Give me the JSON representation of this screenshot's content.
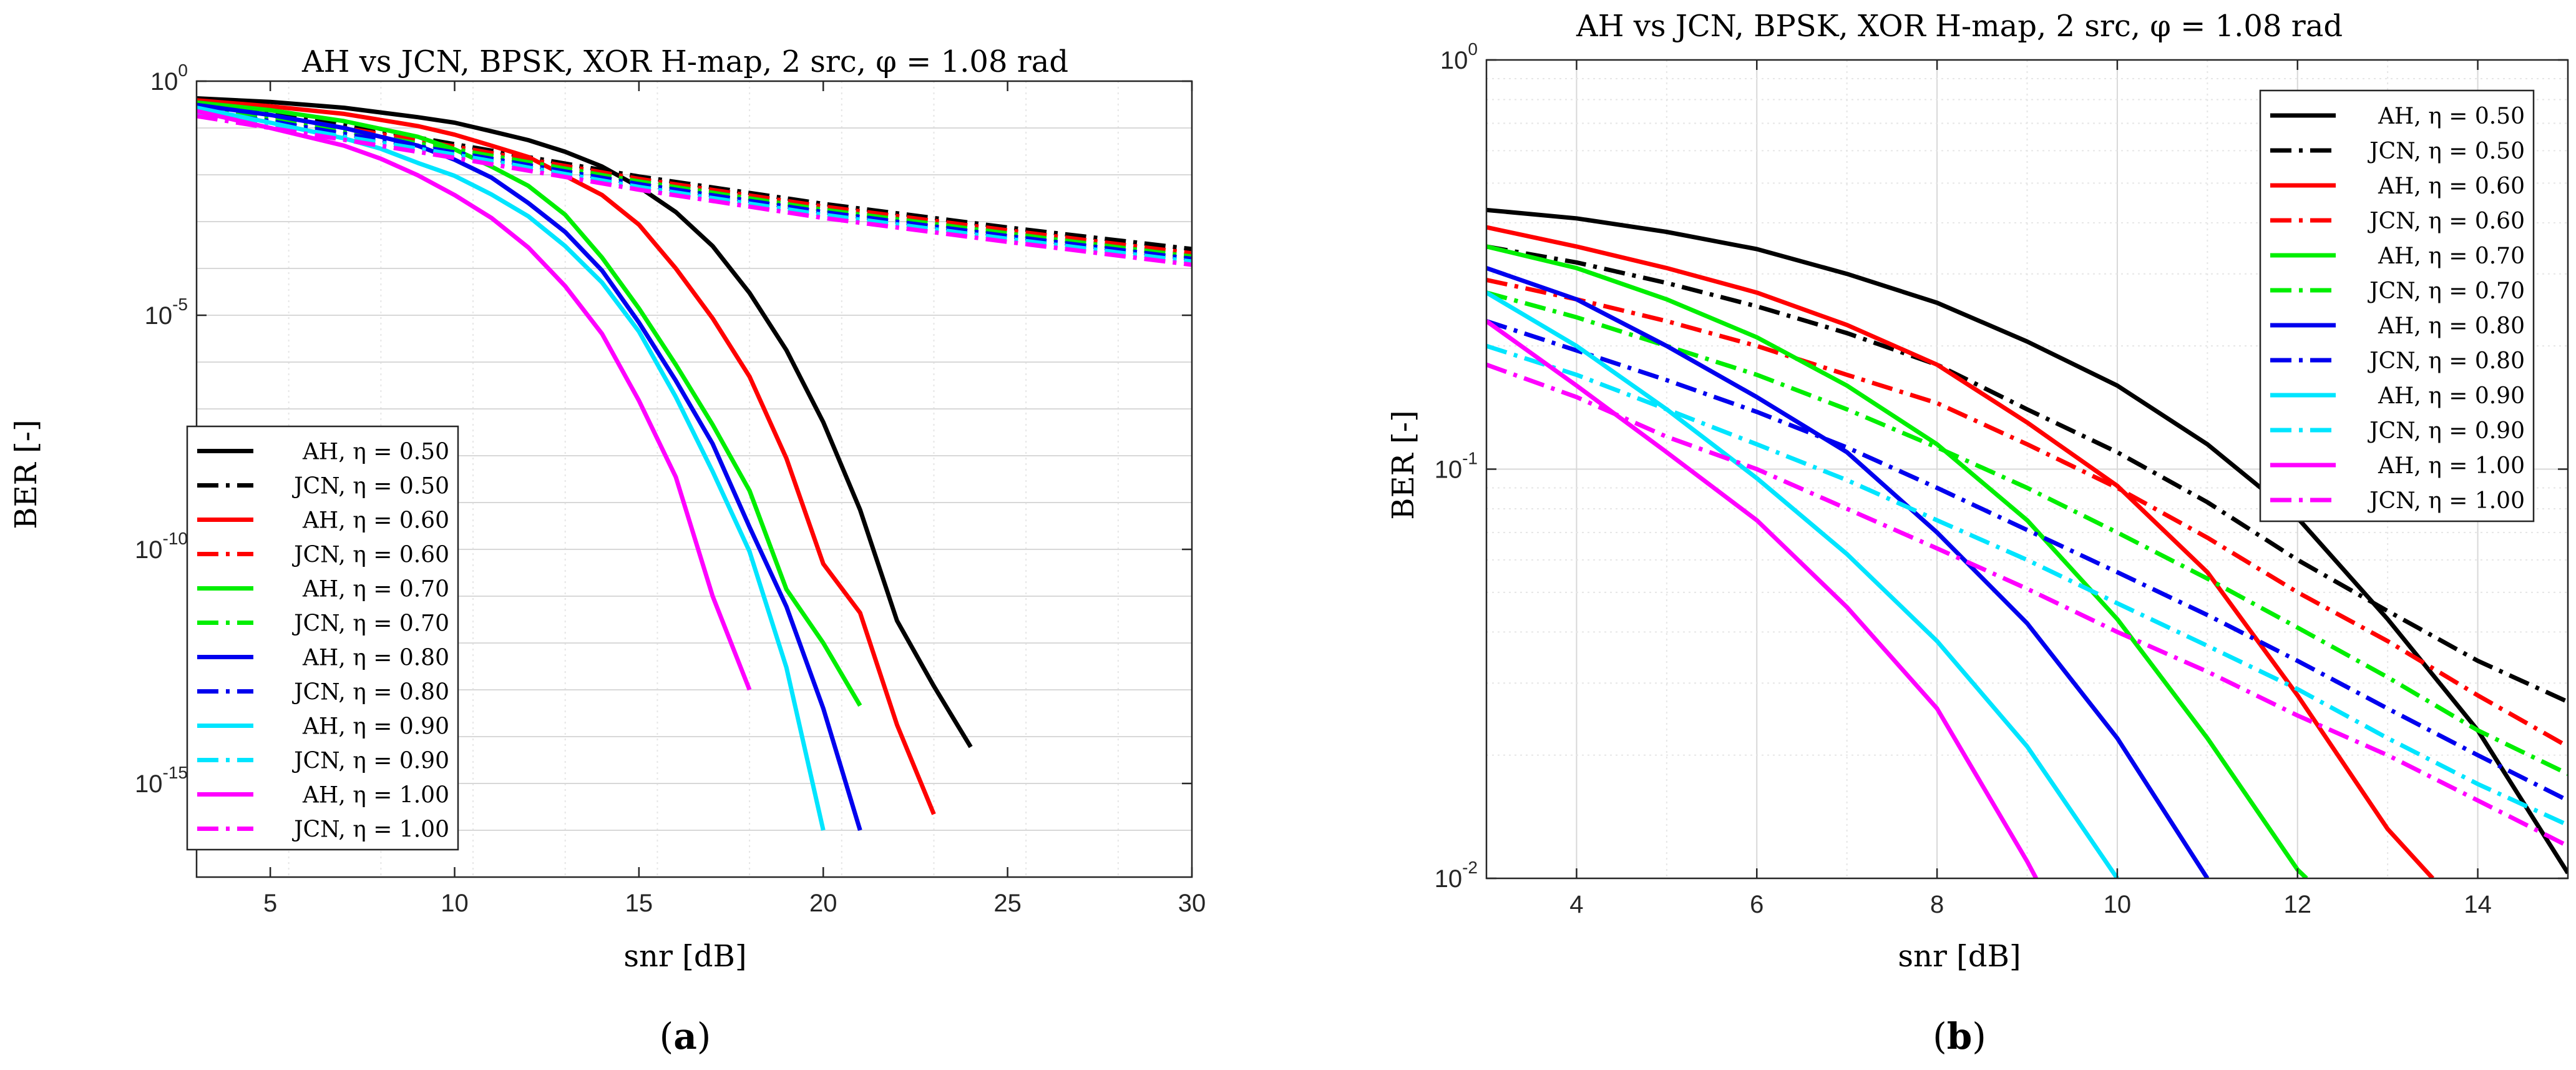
{
  "chart_data": [
    {
      "type": "line",
      "panel": "a",
      "caption_letter": "a",
      "title": "AH vs JCN, BPSK, XOR H-map, 2 src, φ = 1.08 rad",
      "xlabel": "snr [dB]",
      "ylabel": "BER [-]",
      "xscale": "linear",
      "yscale": "log",
      "xlim": [
        3,
        30
      ],
      "ylim": [
        1e-17,
        1
      ],
      "xticks": [
        5,
        10,
        15,
        20,
        25,
        30
      ],
      "xtick_labels": [
        "5",
        "10",
        "15",
        "20",
        "25",
        "30"
      ],
      "yticks": [
        1,
        1e-05,
        1e-10,
        1e-15
      ],
      "ytick_labels": [
        {
          "base": "10",
          "exp": "0"
        },
        {
          "base": "10",
          "exp": "-5"
        },
        {
          "base": "10",
          "exp": "-10"
        },
        {
          "base": "10",
          "exp": "-15"
        }
      ],
      "grid": true,
      "legend_position": "lower-left",
      "series": [
        {
          "name": "AH, η = 0.50",
          "color": "#000000",
          "style": "solid",
          "x": [
            3,
            5,
            7,
            9,
            10,
            11,
            12,
            13,
            14,
            15,
            16,
            17,
            18,
            19,
            20,
            21,
            22,
            23,
            24
          ],
          "y": [
            0.43,
            0.36,
            0.27,
            0.17,
            0.13,
            0.085,
            0.055,
            0.031,
            0.015,
            0.0055,
            0.0016,
            0.0003,
            3e-05,
            1.8e-06,
            5.2e-08,
            7e-10,
            3e-12,
            1.2e-13,
            6e-15
          ]
        },
        {
          "name": "JCN, η = 0.50",
          "color": "#000000",
          "style": "dashdot",
          "x": [
            3,
            5,
            7,
            10,
            15,
            20,
            25,
            30
          ],
          "y": [
            0.35,
            0.22,
            0.12,
            0.045,
            0.0092,
            0.0024,
            0.00075,
            0.00026
          ]
        },
        {
          "name": "AH, η = 0.60",
          "color": "#ff0000",
          "style": "solid",
          "x": [
            3,
            5,
            7,
            9,
            10,
            11,
            12,
            13,
            14,
            15,
            16,
            17,
            18,
            19,
            20,
            21,
            22,
            23
          ],
          "y": [
            0.39,
            0.29,
            0.2,
            0.11,
            0.072,
            0.042,
            0.024,
            0.0095,
            0.0037,
            0.00086,
            0.0001,
            8.6e-06,
            4.9e-07,
            8.8e-09,
            4.9e-11,
            4.4e-12,
            1.8e-14,
            2.2e-16
          ]
        },
        {
          "name": "JCN, η = 0.60",
          "color": "#ff0000",
          "style": "dashdot",
          "x": [
            3,
            5,
            7,
            10,
            15,
            20,
            25,
            30
          ],
          "y": [
            0.29,
            0.18,
            0.1,
            0.04,
            0.0082,
            0.0021,
            0.00065,
            0.00021
          ]
        },
        {
          "name": "AH, η = 0.70",
          "color": "#00ee00",
          "style": "solid",
          "x": [
            3,
            5,
            7,
            9,
            10,
            11,
            12,
            13,
            14,
            15,
            16,
            17,
            18,
            19,
            20,
            21
          ],
          "y": [
            0.35,
            0.24,
            0.14,
            0.065,
            0.035,
            0.015,
            0.0058,
            0.0014,
            0.00017,
            1.4e-05,
            8.8e-07,
            4.6e-08,
            1.8e-09,
            1.4e-11,
            1e-12,
            4.6e-14
          ]
        },
        {
          "name": "JCN, η = 0.70",
          "color": "#00ee00",
          "style": "dashdot",
          "x": [
            3,
            5,
            7,
            10,
            15,
            20,
            25,
            30
          ],
          "y": [
            0.27,
            0.16,
            0.085,
            0.035,
            0.0072,
            0.0018,
            0.00056,
            0.00018
          ]
        },
        {
          "name": "AH, η = 0.80",
          "color": "#0000ee",
          "style": "solid",
          "x": [
            3,
            5,
            7,
            9,
            10,
            11,
            12,
            13,
            14,
            15,
            16,
            17,
            18,
            19,
            20,
            21
          ],
          "y": [
            0.31,
            0.19,
            0.1,
            0.042,
            0.021,
            0.0087,
            0.0025,
            0.0006,
            9e-05,
            7e-06,
            4e-07,
            1.8e-08,
            3e-10,
            6e-12,
            4e-14,
            1e-16
          ]
        },
        {
          "name": "JCN, η = 0.80",
          "color": "#0000ee",
          "style": "dashdot",
          "x": [
            3,
            5,
            7,
            10,
            15,
            20,
            25,
            30
          ],
          "y": [
            0.23,
            0.14,
            0.075,
            0.03,
            0.0063,
            0.0016,
            0.00049,
            0.00016
          ]
        },
        {
          "name": "AH, η = 0.90",
          "color": "#00e5ff",
          "style": "solid",
          "x": [
            3,
            5,
            7,
            8,
            9,
            10,
            11,
            12,
            13,
            14,
            15,
            16,
            17,
            18,
            19,
            20
          ],
          "y": [
            0.27,
            0.13,
            0.06,
            0.036,
            0.018,
            0.0095,
            0.0038,
            0.0013,
            0.0003,
            5e-05,
            4.5e-06,
            1.8e-07,
            4.6e-09,
            9e-11,
            3e-13,
            1e-16
          ]
        },
        {
          "name": "JCN, η = 0.90",
          "color": "#00e5ff",
          "style": "dashdot",
          "x": [
            3,
            5,
            7,
            10,
            15,
            20,
            25,
            30
          ],
          "y": [
            0.2,
            0.12,
            0.065,
            0.027,
            0.0055,
            0.0014,
            0.00043,
            0.00014
          ]
        },
        {
          "name": "AH, η = 1.00",
          "color": "#ff00ff",
          "style": "solid",
          "x": [
            3,
            5,
            7,
            8,
            9,
            10,
            11,
            12,
            13,
            14,
            15,
            16,
            17,
            18
          ],
          "y": [
            0.23,
            0.1,
            0.042,
            0.022,
            0.0098,
            0.0037,
            0.0012,
            0.00028,
            4.2e-05,
            4e-06,
            1.5e-07,
            3.5e-09,
            1e-11,
            1e-13
          ]
        },
        {
          "name": "JCN, η = 1.00",
          "color": "#ff00ff",
          "style": "dashdot",
          "x": [
            3,
            5,
            7,
            10,
            15,
            20,
            25,
            30
          ],
          "y": [
            0.18,
            0.1,
            0.056,
            0.023,
            0.0048,
            0.0012,
            0.00037,
            0.00012
          ]
        }
      ]
    },
    {
      "type": "line",
      "panel": "b",
      "caption_letter": "b",
      "title": "AH vs JCN, BPSK, XOR H-map, 2 src, φ = 1.08 rad",
      "xlabel": "snr [dB]",
      "ylabel": "BER [-]",
      "xscale": "linear",
      "yscale": "log",
      "xlim": [
        3,
        15
      ],
      "ylim": [
        0.01,
        1
      ],
      "xticks": [
        4,
        6,
        8,
        10,
        12,
        14
      ],
      "xtick_labels": [
        "4",
        "6",
        "8",
        "10",
        "12",
        "14"
      ],
      "yticks": [
        1,
        0.1,
        0.01
      ],
      "ytick_labels": [
        {
          "base": "10",
          "exp": "0"
        },
        {
          "base": "10",
          "exp": "-1"
        },
        {
          "base": "10",
          "exp": "-2"
        }
      ],
      "grid": true,
      "legend_position": "top-right",
      "series": [
        {
          "name": "AH, η = 0.50",
          "color": "#000000",
          "style": "solid",
          "x": [
            3,
            4,
            5,
            6,
            7,
            8,
            9,
            10,
            11,
            12,
            13,
            14,
            15
          ],
          "y": [
            0.43,
            0.41,
            0.38,
            0.345,
            0.3,
            0.255,
            0.205,
            0.16,
            0.115,
            0.076,
            0.043,
            0.023,
            0.0103
          ]
        },
        {
          "name": "JCN, η = 0.50",
          "color": "#000000",
          "style": "dashdot",
          "x": [
            3,
            4,
            5,
            6,
            7,
            8,
            9,
            10,
            11,
            12,
            13,
            14,
            15
          ],
          "y": [
            0.35,
            0.32,
            0.285,
            0.25,
            0.215,
            0.18,
            0.14,
            0.11,
            0.083,
            0.06,
            0.045,
            0.034,
            0.027
          ]
        },
        {
          "name": "AH, η = 0.60",
          "color": "#ff0000",
          "style": "solid",
          "x": [
            3,
            4,
            5,
            6,
            7,
            8,
            9,
            10,
            11,
            12,
            13,
            13.5
          ],
          "y": [
            0.39,
            0.35,
            0.31,
            0.27,
            0.225,
            0.18,
            0.13,
            0.091,
            0.056,
            0.028,
            0.0132,
            0.01
          ]
        },
        {
          "name": "JCN, η = 0.60",
          "color": "#ff0000",
          "style": "dashdot",
          "x": [
            3,
            4,
            5,
            6,
            7,
            8,
            9,
            10,
            11,
            12,
            13,
            14,
            15
          ],
          "y": [
            0.29,
            0.26,
            0.23,
            0.2,
            0.17,
            0.145,
            0.115,
            0.09,
            0.068,
            0.05,
            0.038,
            0.028,
            0.021
          ]
        },
        {
          "name": "AH, η = 0.70",
          "color": "#00ee00",
          "style": "solid",
          "x": [
            3,
            4,
            5,
            6,
            7,
            8,
            9,
            10,
            11,
            12,
            12.1
          ],
          "y": [
            0.35,
            0.31,
            0.26,
            0.21,
            0.16,
            0.115,
            0.075,
            0.043,
            0.022,
            0.0105,
            0.01
          ]
        },
        {
          "name": "JCN, η = 0.70",
          "color": "#00ee00",
          "style": "dashdot",
          "x": [
            3,
            4,
            5,
            6,
            7,
            8,
            9,
            10,
            11,
            12,
            13,
            14,
            15
          ],
          "y": [
            0.27,
            0.235,
            0.2,
            0.17,
            0.14,
            0.113,
            0.09,
            0.07,
            0.054,
            0.041,
            0.031,
            0.023,
            0.018
          ]
        },
        {
          "name": "AH, η = 0.80",
          "color": "#0000ee",
          "style": "solid",
          "x": [
            3,
            4,
            5,
            6,
            7,
            8,
            9,
            10,
            11
          ],
          "y": [
            0.31,
            0.26,
            0.2,
            0.15,
            0.11,
            0.07,
            0.042,
            0.022,
            0.01
          ]
        },
        {
          "name": "JCN, η = 0.80",
          "color": "#0000ee",
          "style": "dashdot",
          "x": [
            3,
            4,
            5,
            6,
            7,
            8,
            9,
            10,
            11,
            12,
            13,
            14,
            15
          ],
          "y": [
            0.23,
            0.195,
            0.165,
            0.138,
            0.113,
            0.09,
            0.071,
            0.056,
            0.044,
            0.034,
            0.026,
            0.02,
            0.0155
          ]
        },
        {
          "name": "AH, η = 0.90",
          "color": "#00e5ff",
          "style": "solid",
          "x": [
            3,
            4,
            5,
            6,
            7,
            8,
            9,
            10
          ],
          "y": [
            0.27,
            0.2,
            0.14,
            0.095,
            0.062,
            0.038,
            0.021,
            0.01
          ]
        },
        {
          "name": "JCN, η = 0.90",
          "color": "#00e5ff",
          "style": "dashdot",
          "x": [
            3,
            4,
            5,
            6,
            7,
            8,
            9,
            10,
            11,
            12,
            13,
            14,
            15
          ],
          "y": [
            0.2,
            0.17,
            0.14,
            0.115,
            0.094,
            0.075,
            0.06,
            0.047,
            0.037,
            0.029,
            0.022,
            0.017,
            0.0135
          ]
        },
        {
          "name": "AH, η = 1.00",
          "color": "#ff00ff",
          "style": "solid",
          "x": [
            3,
            4,
            5,
            6,
            7,
            8,
            9,
            9.1
          ],
          "y": [
            0.23,
            0.16,
            0.11,
            0.075,
            0.046,
            0.026,
            0.011,
            0.01
          ]
        },
        {
          "name": "JCN, η = 1.00",
          "color": "#ff00ff",
          "style": "dashdot",
          "x": [
            3,
            4,
            5,
            6,
            7,
            8,
            9,
            10,
            11,
            12,
            13,
            14,
            15
          ],
          "y": [
            0.18,
            0.15,
            0.12,
            0.1,
            0.08,
            0.064,
            0.051,
            0.04,
            0.032,
            0.025,
            0.02,
            0.0155,
            0.012
          ]
        }
      ]
    }
  ]
}
